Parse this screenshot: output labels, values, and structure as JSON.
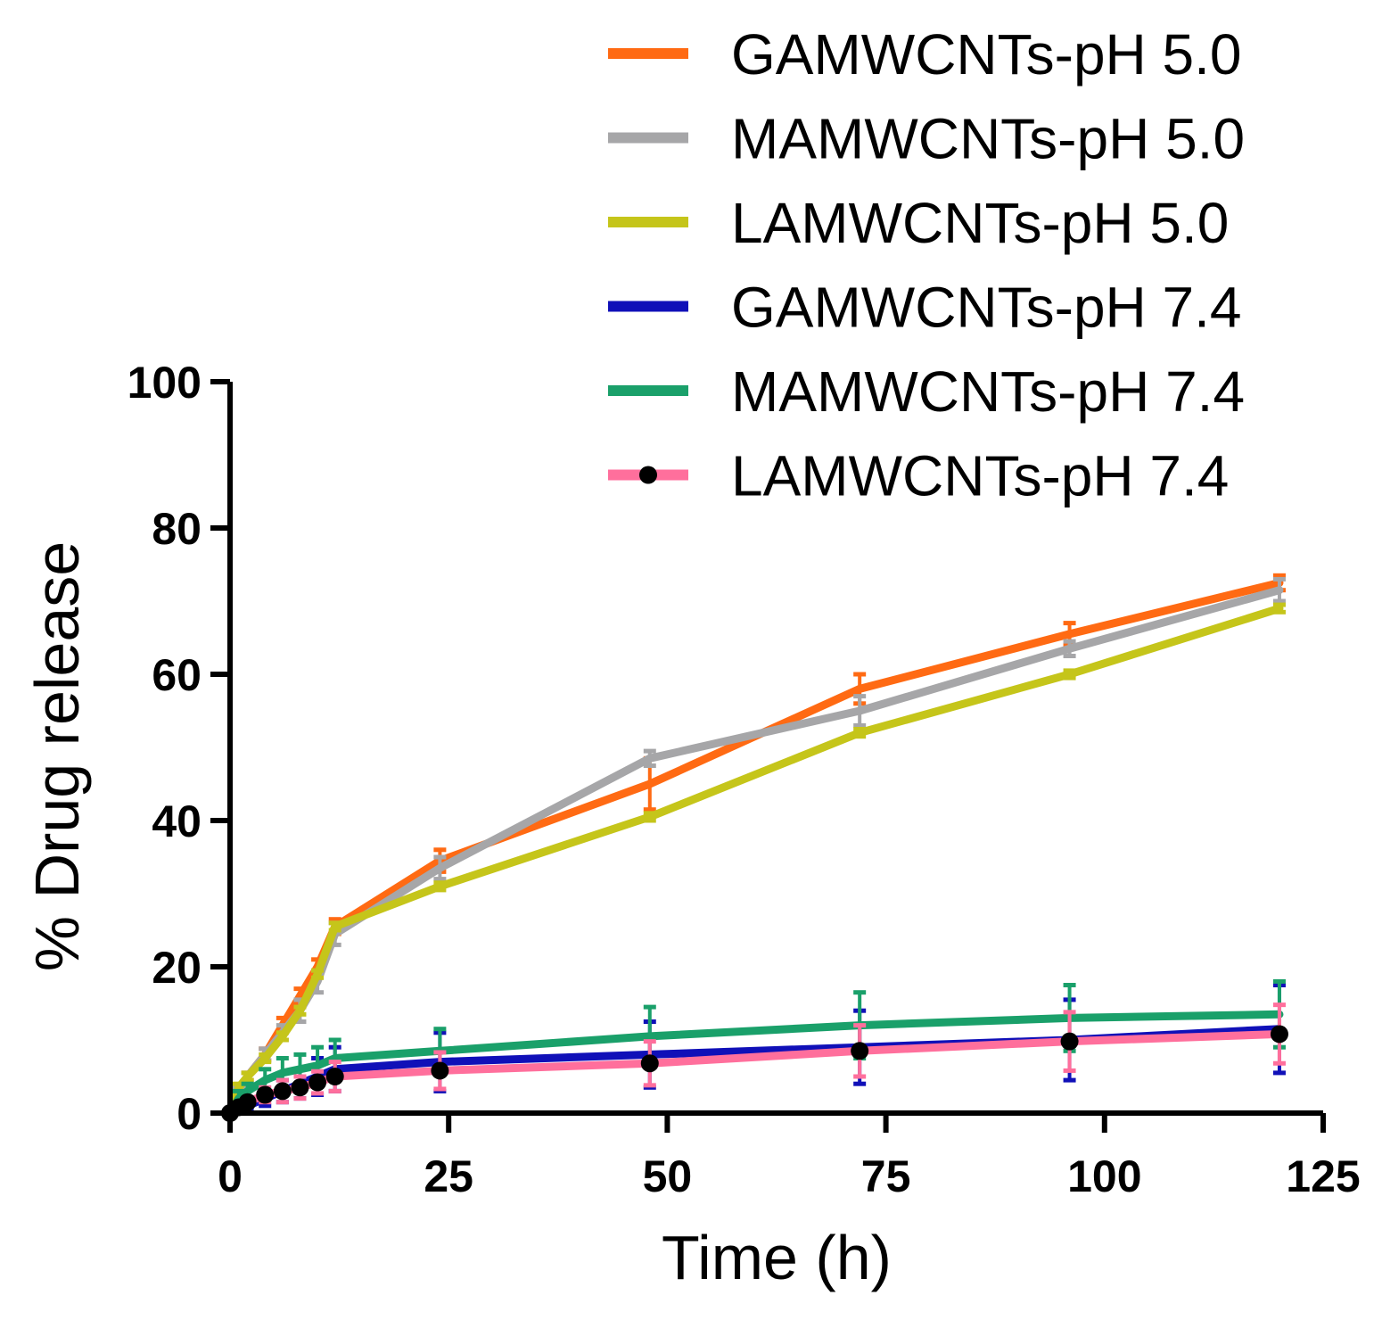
{
  "chart_data": {
    "type": "line",
    "title": "",
    "xlabel": "Time (h)",
    "ylabel": "% Drug release",
    "xlim": [
      0,
      125
    ],
    "ylim": [
      0,
      100
    ],
    "xticks": [
      0,
      25,
      50,
      75,
      100,
      125
    ],
    "yticks": [
      0,
      20,
      40,
      60,
      80,
      100
    ],
    "grid": false,
    "legend_position": "top-right",
    "series": [
      {
        "name": "GAMWCNTs-pH 5.0",
        "color": "#ff6a13",
        "marker": "none",
        "x": [
          0,
          1,
          2,
          4,
          6,
          8,
          10,
          12,
          24,
          48,
          72,
          96,
          120
        ],
        "y": [
          0,
          3,
          5,
          8,
          12,
          16,
          20,
          25.5,
          34.5,
          45,
          58,
          65.5,
          72.5
        ],
        "error": [
          0,
          0.5,
          0.5,
          0.8,
          1,
          1,
          1,
          1,
          1.5,
          3.5,
          2,
          1.5,
          1
        ]
      },
      {
        "name": "MAMWCNTs-pH 5.0",
        "color": "#a6a6a8",
        "marker": "none",
        "x": [
          0,
          1,
          2,
          4,
          6,
          8,
          10,
          12,
          24,
          48,
          72,
          96,
          120
        ],
        "y": [
          0,
          3,
          5,
          8,
          11,
          14,
          18,
          24.5,
          33.5,
          48.5,
          55,
          63.5,
          71.5
        ],
        "error": [
          0,
          0.5,
          0.5,
          0.8,
          1,
          1.5,
          1.5,
          1.5,
          1.5,
          1,
          2,
          1,
          1.5
        ]
      },
      {
        "name": "LAMWCNTs-pH 5.0",
        "color": "#c5c51a",
        "marker": "none",
        "x": [
          0,
          1,
          2,
          4,
          6,
          8,
          10,
          12,
          24,
          48,
          72,
          96,
          120
        ],
        "y": [
          0,
          3.5,
          5,
          7.5,
          10.5,
          14,
          19,
          25.5,
          31,
          40.5,
          52,
          60,
          69
        ],
        "error": [
          0,
          0.5,
          0.5,
          0.5,
          0.5,
          0.5,
          0.5,
          0.5,
          0.5,
          0.5,
          0.5,
          0.5,
          0.5
        ]
      },
      {
        "name": "GAMWCNTs-pH 7.4",
        "color": "#1010b8",
        "marker": "none",
        "x": [
          0,
          1,
          2,
          4,
          6,
          8,
          10,
          12,
          24,
          48,
          72,
          96,
          120
        ],
        "y": [
          0,
          0.5,
          1,
          2,
          3,
          4,
          5,
          6,
          7,
          8,
          9,
          10,
          11.5
        ],
        "error": [
          0,
          0.5,
          0.5,
          1,
          1.5,
          2,
          2.5,
          3,
          4,
          4.5,
          5,
          5.5,
          6
        ]
      },
      {
        "name": "MAMWCNTs-pH 7.4",
        "color": "#1aa06a",
        "marker": "none",
        "x": [
          0,
          1,
          2,
          4,
          6,
          8,
          10,
          12,
          24,
          48,
          72,
          96,
          120
        ],
        "y": [
          0,
          2,
          3,
          4.5,
          5.5,
          6,
          6.5,
          7.5,
          8.5,
          10.5,
          12,
          13,
          13.5
        ],
        "error": [
          0,
          1,
          1,
          1.5,
          2,
          2,
          2.5,
          2.5,
          3,
          4,
          4.5,
          4.5,
          4.5
        ]
      },
      {
        "name": "LAMWCNTs-pH 7.4",
        "color": "#ff6f9c",
        "marker": "circle",
        "x": [
          0,
          1,
          2,
          4,
          6,
          8,
          10,
          12,
          24,
          48,
          72,
          96,
          120
        ],
        "y": [
          0,
          0.8,
          1.5,
          2.5,
          3,
          3.5,
          4.2,
          5,
          5.8,
          6.8,
          8.5,
          9.8,
          10.8
        ],
        "error": [
          0,
          0.5,
          0.5,
          1,
          1.5,
          1.5,
          1.5,
          2,
          2.5,
          3,
          3.5,
          4,
          4
        ]
      }
    ]
  }
}
